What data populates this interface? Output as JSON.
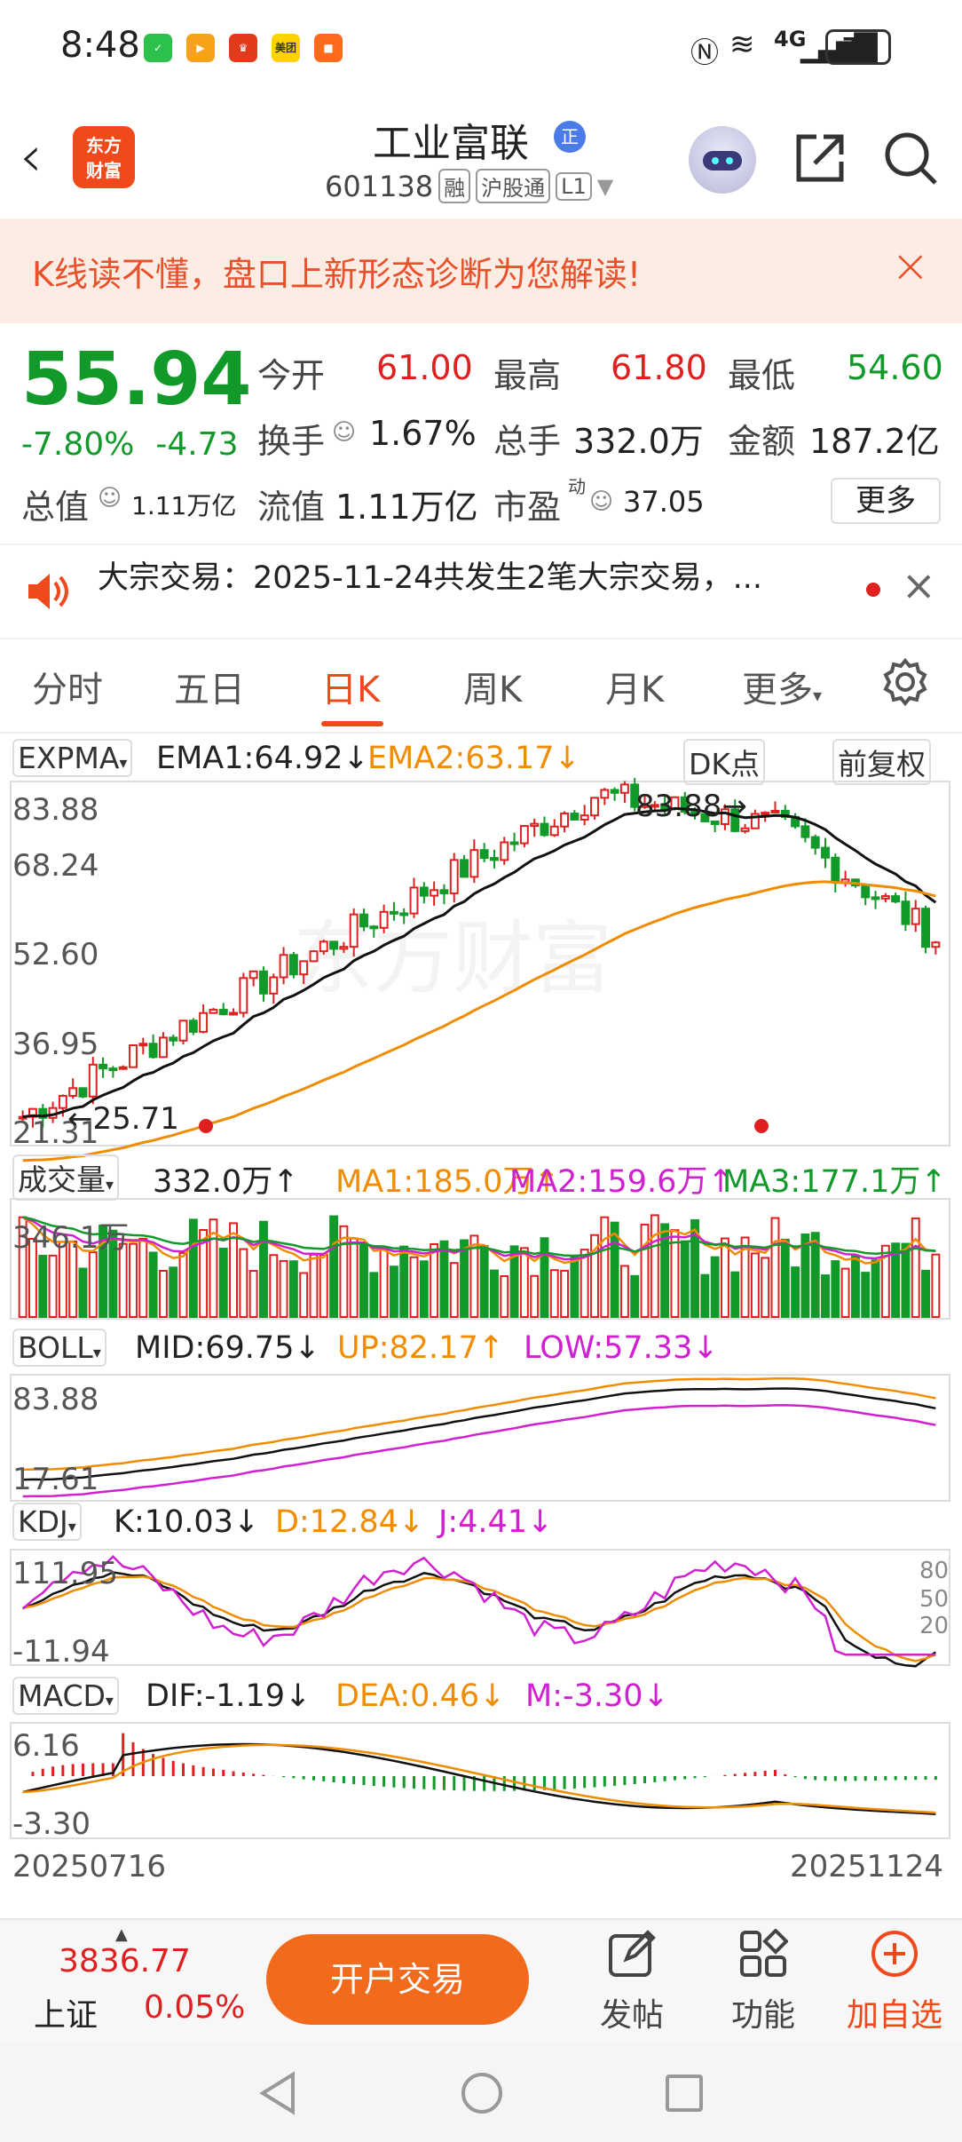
{
  "status_bar": {
    "time": "8:48",
    "battery": "70",
    "network": "4G"
  },
  "header": {
    "back_icon": "back-arrow",
    "logo": "东方\n财富",
    "stock_name": "工业富联",
    "badge": "正",
    "code": "601138",
    "tags": [
      "融",
      "沪股通",
      "L1"
    ]
  },
  "banner": {
    "text": "K线读不懂，盘口上新形态诊断为您解读!"
  },
  "quote": {
    "price": "55.94",
    "change_pct": "-7.80%",
    "change_abs": "-4.73",
    "open_label": "今开",
    "open": "61.00",
    "high_label": "最高",
    "high": "61.80",
    "low_label": "最低",
    "low": "54.60",
    "turnover_label": "换手",
    "turnover": "1.67%",
    "volume_label": "总手",
    "volume": "332.0万",
    "amount_label": "金额",
    "amount": "187.2亿",
    "mktcap_label": "总值",
    "mktcap": "1.11万亿",
    "float_label": "流值",
    "float": "1.11万亿",
    "pe_label": "市盈",
    "pe_sup": "动",
    "pe": "37.05",
    "more": "更多"
  },
  "notice": {
    "text": "大宗交易：2025-11-24共发生2笔大宗交易，..."
  },
  "tabs": [
    "分时",
    "五日",
    "日K",
    "周K",
    "月K",
    "更多"
  ],
  "active_tab": "日K",
  "kline": {
    "indicator": "EXPMA",
    "ema1": "EMA1:64.92↓",
    "ema2": "EMA2:63.17↓",
    "dk": "DK点",
    "adjust": "前复权",
    "y_labels": [
      "83.88",
      "68.24",
      "52.60",
      "36.95",
      "21.31"
    ],
    "high_marker": "83.88",
    "low_marker": "25.71",
    "watermark": "东方财富"
  },
  "volume": {
    "indicator": "成交量",
    "val": "332.0万↑",
    "ma1": "MA1:185.0万↑",
    "ma2": "MA2:159.6万↑",
    "ma3": "MA3:177.1万↑",
    "y_label": "346.1万"
  },
  "boll": {
    "indicator": "BOLL",
    "mid": "MID:69.75↓",
    "up": "UP:82.17↑",
    "low": "LOW:57.33↓",
    "y_top": "83.88",
    "y_bottom": "17.61"
  },
  "kdj": {
    "indicator": "KDJ",
    "k": "K:10.03↓",
    "d": "D:12.84↓",
    "j": "J:4.41↓",
    "y_top": "111.95",
    "y_bottom": "-11.94",
    "levels": [
      "80",
      "50",
      "20"
    ]
  },
  "macd": {
    "indicator": "MACD",
    "dif": "DIF:-1.19↓",
    "dea": "DEA:0.46↓",
    "m": "M:-3.30↓",
    "y_top": "6.16",
    "y_bottom": "-3.30"
  },
  "dates": {
    "start": "20250716",
    "end": "20251124"
  },
  "bottom": {
    "index_value": "3836.77",
    "index_name": "上证",
    "index_pct": "0.05%",
    "trade": "开户交易",
    "nav": [
      "发帖",
      "功能",
      "加自选"
    ]
  },
  "colors": {
    "up": "#e02020",
    "down": "#119a2a",
    "accent": "#f04a1c",
    "ema2": "#f08c00",
    "purple": "#d020d0"
  }
}
